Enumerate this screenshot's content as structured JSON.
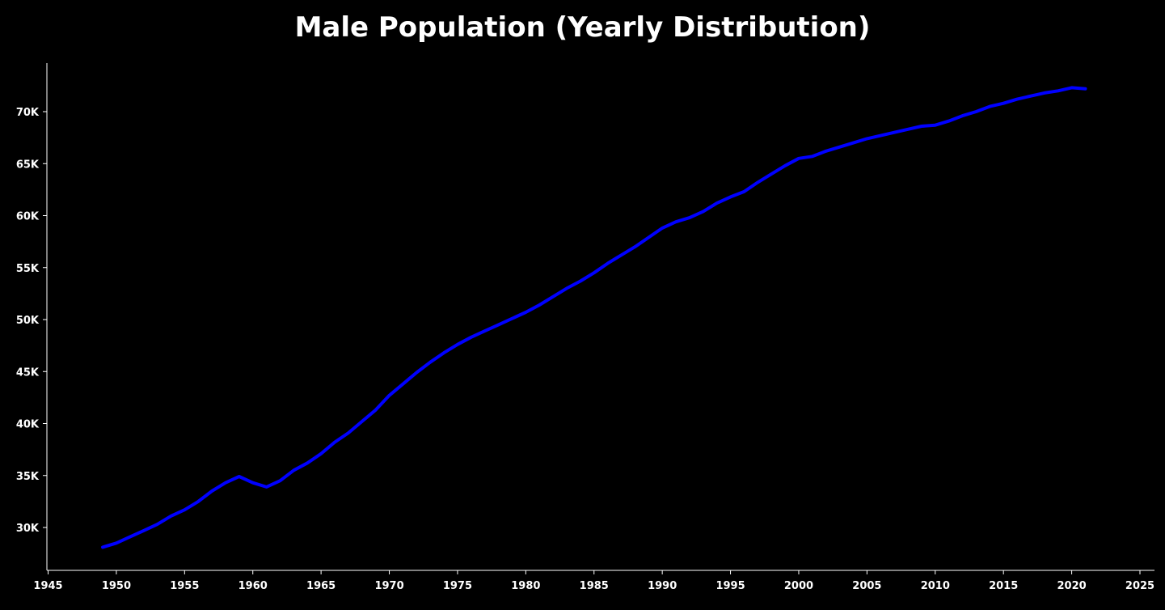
{
  "chart_data": {
    "type": "line",
    "title": "Male Population (Yearly Distribution)",
    "xlabel": "",
    "ylabel": "",
    "xlim": [
      1945,
      2025
    ],
    "ylim": [
      25000,
      74500
    ],
    "x_ticks": [
      1945,
      1950,
      1955,
      1960,
      1965,
      1970,
      1975,
      1980,
      1985,
      1990,
      1995,
      2000,
      2005,
      2010,
      2015,
      2020,
      2025
    ],
    "x_tick_labels": [
      "1945",
      "1950",
      "1955",
      "1960",
      "1965",
      "1970",
      "1975",
      "1980",
      "1985",
      "1990",
      "1995",
      "2000",
      "2005",
      "2010",
      "2015",
      "2020",
      "2025"
    ],
    "y_ticks": [
      30000,
      35000,
      40000,
      45000,
      50000,
      55000,
      60000,
      65000,
      70000
    ],
    "y_tick_labels": [
      "30K",
      "35K",
      "40K",
      "45K",
      "50K",
      "55K",
      "60K",
      "65K",
      "70K"
    ],
    "grid": false,
    "line_color": "#0000ff",
    "series": [
      {
        "x": [
          1949,
          1950,
          1951,
          1952,
          1953,
          1954,
          1955,
          1956,
          1957,
          1958,
          1959,
          1960,
          1961,
          1962,
          1963,
          1964,
          1965,
          1966,
          1967,
          1968,
          1969,
          1970,
          1971,
          1972,
          1973,
          1974,
          1975,
          1976,
          1977,
          1978,
          1979,
          1980,
          1981,
          1982,
          1983,
          1984,
          1985,
          1986,
          1987,
          1988,
          1989,
          1990,
          1991,
          1992,
          1993,
          1994,
          1995,
          1996,
          1997,
          1998,
          1999,
          2000,
          2001,
          2002,
          2003,
          2004,
          2005,
          2006,
          2007,
          2008,
          2009,
          2010,
          2011,
          2012,
          2013,
          2014,
          2015,
          2016,
          2017,
          2018,
          2019,
          2020,
          2021
        ],
        "values": [
          28100,
          28500,
          29100,
          29700,
          30300,
          31100,
          31700,
          32500,
          33500,
          34300,
          34900,
          34300,
          33900,
          34500,
          35500,
          36200,
          37100,
          38200,
          39100,
          40200,
          41300,
          42700,
          43800,
          44900,
          45900,
          46800,
          47600,
          48300,
          48900,
          49500,
          50100,
          50700,
          51400,
          52200,
          53000,
          53700,
          54500,
          55400,
          56200,
          57000,
          57900,
          58800,
          59400,
          59800,
          60400,
          61200,
          61800,
          62300,
          63200,
          64000,
          64800,
          65500,
          65700,
          66200,
          66600,
          67000,
          67400,
          67700,
          68000,
          68300,
          68600,
          68700,
          69100,
          69600,
          70000,
          70500,
          70800,
          71200,
          71500,
          71800,
          72000,
          72300,
          72200
        ]
      }
    ]
  }
}
